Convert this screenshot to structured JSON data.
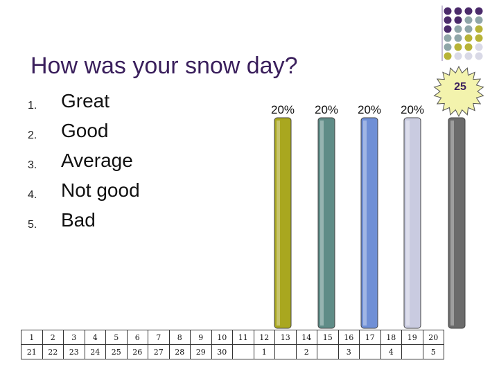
{
  "slide": {
    "title": "How was your snow day?",
    "options": [
      {
        "number": "1.",
        "label": "Great"
      },
      {
        "number": "2.",
        "label": "Good"
      },
      {
        "number": "3.",
        "label": "Average"
      },
      {
        "number": "4.",
        "label": "Not good"
      },
      {
        "number": "5.",
        "label": "Bad"
      }
    ]
  },
  "timer": {
    "value": "25"
  },
  "chart_data": {
    "type": "bar",
    "categories": [
      "1",
      "2",
      "3",
      "4",
      "5"
    ],
    "values": [
      20,
      20,
      20,
      20,
      20
    ],
    "data_labels": [
      "20%",
      "20%",
      "20%",
      "20%",
      ""
    ],
    "ylim": [
      0,
      100
    ],
    "colors": [
      "#a9a71f",
      "#5f8c87",
      "#6f8fd6",
      "#c9cbe0",
      "#6b6b6b"
    ]
  },
  "clicker_grid": {
    "row1": [
      "1",
      "2",
      "3",
      "4",
      "5",
      "6",
      "7",
      "8",
      "9",
      "10",
      "11",
      "12",
      "13",
      "14",
      "15",
      "16",
      "17",
      "18",
      "19",
      "20"
    ],
    "row2": [
      "21",
      "22",
      "23",
      "24",
      "25",
      "26",
      "27",
      "28",
      "29",
      "30",
      "",
      "1",
      "",
      "2",
      "",
      "3",
      "",
      "4",
      "",
      "5"
    ]
  },
  "decoration": {
    "dot_colors": [
      "#4a2a6a",
      "#8fa6a8",
      "#b7b337",
      "#d9d9e6"
    ]
  }
}
